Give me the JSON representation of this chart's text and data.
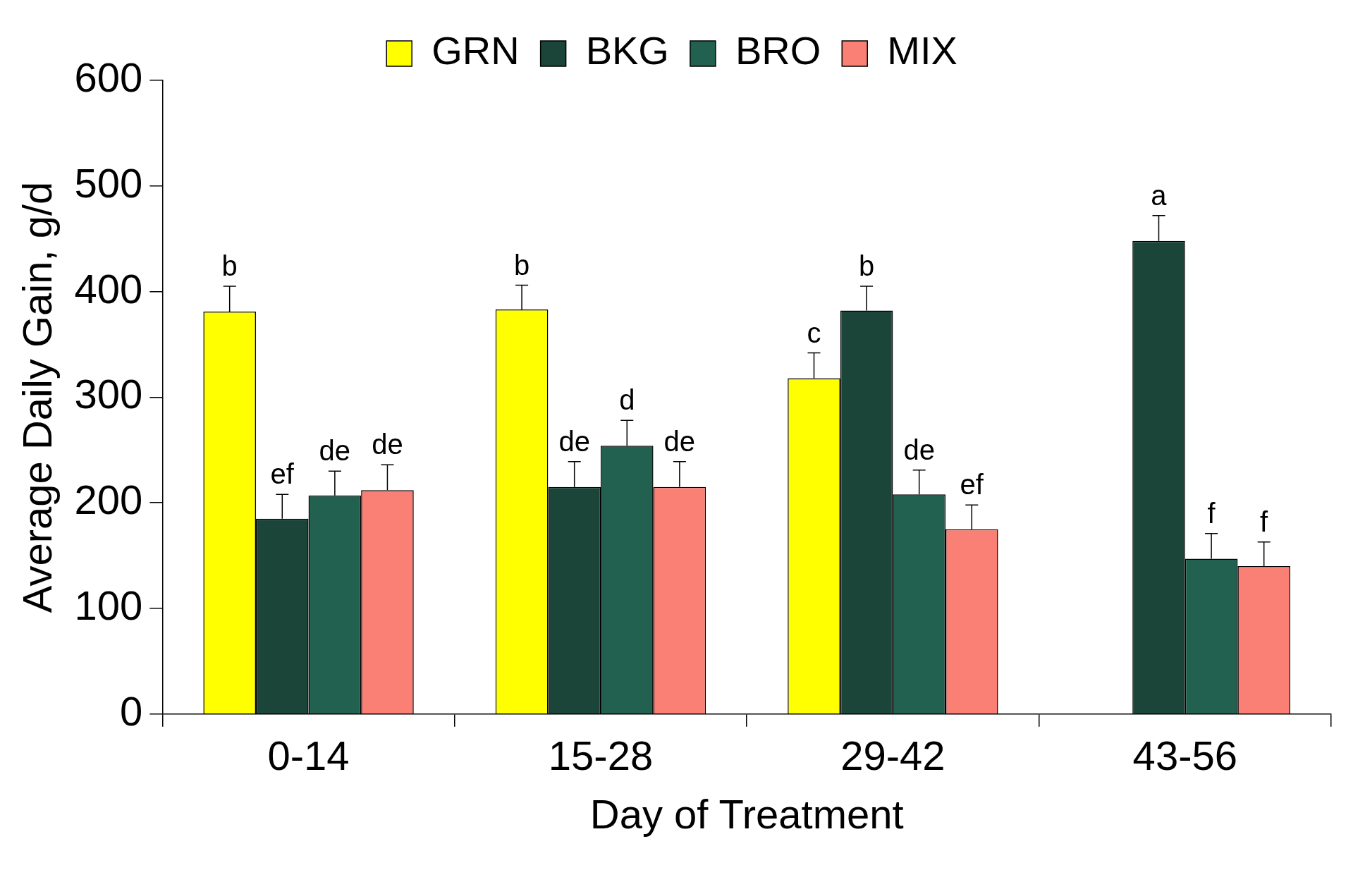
{
  "chart_data": {
    "type": "bar",
    "xlabel": "Day of Treatment",
    "ylabel": "Average Daily Gain, g/d",
    "categories": [
      "0-14",
      "15-28",
      "29-42",
      "43-56"
    ],
    "series": [
      {
        "name": "GRN",
        "color": "#ffff00",
        "values": [
          381,
          383,
          318,
          null
        ],
        "errors": [
          [
            381,
            405
          ],
          [
            383,
            406
          ],
          [
            318,
            342
          ],
          null
        ],
        "value_labels": [
          "b",
          "b",
          "c",
          null
        ]
      },
      {
        "name": "BKG",
        "color": "#1a4538",
        "values": [
          185,
          215,
          382,
          448
        ],
        "errors": [
          [
            185,
            208
          ],
          [
            215,
            239
          ],
          [
            382,
            405
          ],
          [
            448,
            472
          ]
        ],
        "value_labels": [
          "ef",
          "de",
          "b",
          "a"
        ]
      },
      {
        "name": "BRO",
        "color": "#22614f",
        "values": [
          207,
          254,
          208,
          147
        ],
        "errors": [
          [
            207,
            230
          ],
          [
            254,
            278
          ],
          [
            208,
            231
          ],
          [
            147,
            171
          ]
        ],
        "value_labels": [
          "de",
          "d",
          "de",
          "f"
        ]
      },
      {
        "name": "MIX",
        "color": "#fa8075",
        "values": [
          212,
          215,
          175,
          140
        ],
        "errors": [
          [
            212,
            236
          ],
          [
            215,
            239
          ],
          [
            175,
            198
          ],
          [
            140,
            163
          ]
        ],
        "value_labels": [
          "de",
          "de",
          "ef",
          "f"
        ]
      }
    ],
    "ylim": [
      0,
      600
    ],
    "yticks": [
      0,
      100,
      200,
      300,
      400,
      500,
      600
    ],
    "grid": false,
    "legend": "top"
  }
}
